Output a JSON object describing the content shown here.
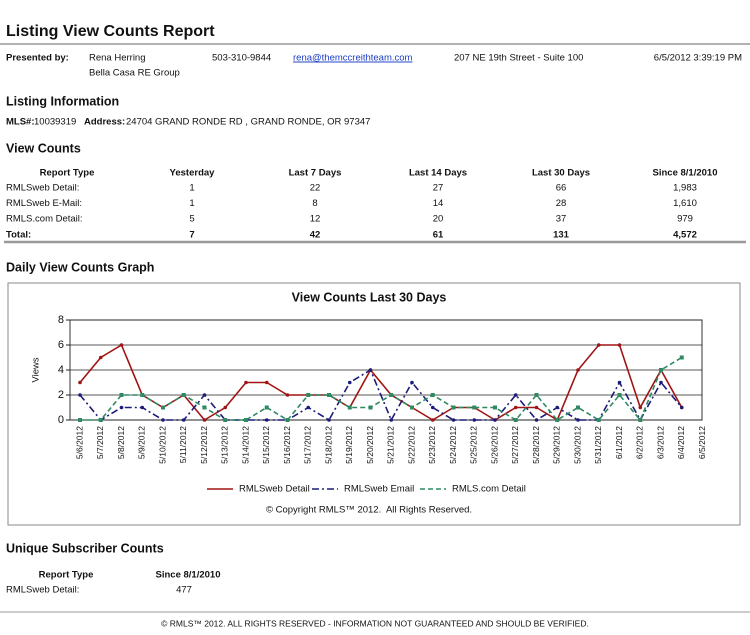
{
  "header": {
    "title": "Listing View Counts Report"
  },
  "presenter": {
    "label": "Presented by:",
    "name": "Rena Herring",
    "company": "Bella Casa RE Group",
    "phone": "503-310-9844",
    "email": "rena@themccreithteam.com",
    "address": "207 NE 19th Street - Suite 100",
    "date": "6/5/2012 3:39:19 PM"
  },
  "listing": {
    "title": "Listing Information",
    "mls_label": "MLS#:",
    "mls": "10039319",
    "address_label": "Address:",
    "address": "24704 GRAND RONDE RD , GRAND RONDE, OR 97347"
  },
  "view_counts": {
    "title": "View Counts",
    "columns": [
      "Report Type",
      "Yesterday",
      "Last 7 Days",
      "Last 14 Days",
      "Last 30 Days",
      "Since 8/1/2010"
    ],
    "rows": [
      [
        "RMLSweb Detail:",
        "1",
        "22",
        "27",
        "66",
        "1,983"
      ],
      [
        "RMLSweb E-Mail:",
        "1",
        "8",
        "14",
        "28",
        "1,610"
      ],
      [
        "RMLS.com Detail:",
        "5",
        "12",
        "20",
        "37",
        "979"
      ]
    ],
    "total": [
      "Total:",
      "7",
      "42",
      "61",
      "131",
      "4,572"
    ]
  },
  "graph_section": {
    "title": "Daily View Counts Graph"
  },
  "chart_data": {
    "type": "line",
    "title": "View Counts Last 30 Days",
    "y_label": "Views",
    "categories": [
      "5/6/2012",
      "5/7/2012",
      "5/8/2012",
      "5/9/2012",
      "5/10/2012",
      "5/11/2012",
      "5/12/2012",
      "5/13/2012",
      "5/14/2012",
      "5/15/2012",
      "5/16/2012",
      "5/17/2012",
      "5/18/2012",
      "5/19/2012",
      "5/20/2012",
      "5/21/2012",
      "5/22/2012",
      "5/23/2012",
      "5/24/2012",
      "5/25/2012",
      "5/26/2012",
      "5/27/2012",
      "5/28/2012",
      "5/29/2012",
      "5/30/2012",
      "5/31/2012",
      "6/1/2012",
      "6/2/2012",
      "6/3/2012",
      "6/4/2012",
      "6/5/2012"
    ],
    "series": [
      {
        "name": "RMLSweb Detail",
        "color": "#a01414",
        "dash": "none",
        "values": [
          3,
          5,
          6,
          2,
          1,
          2,
          0,
          1,
          3,
          3,
          2,
          2,
          2,
          1,
          4,
          2,
          1,
          0,
          1,
          1,
          0,
          1,
          1,
          0,
          4,
          6,
          6,
          1,
          4,
          1,
          null
        ]
      },
      {
        "name": "RMLSweb Email",
        "color": "#1c1c78",
        "dash": "7 3 2 3",
        "values": [
          2,
          0,
          1,
          1,
          0,
          0,
          2,
          0,
          0,
          0,
          0,
          1,
          0,
          3,
          4,
          0,
          3,
          1,
          0,
          0,
          0,
          2,
          0,
          1,
          0,
          0,
          3,
          0,
          3,
          1,
          null
        ]
      },
      {
        "name": "RMLS.com Detail",
        "color": "#2f8a62",
        "dash": "5 3",
        "values": [
          0,
          0,
          2,
          2,
          1,
          2,
          1,
          0,
          0,
          1,
          0,
          2,
          2,
          1,
          1,
          2,
          1,
          2,
          1,
          1,
          1,
          0,
          2,
          0,
          1,
          0,
          2,
          0,
          4,
          5,
          null
        ]
      }
    ],
    "ylim": [
      0,
      8
    ],
    "yticks": [
      0,
      2,
      4,
      6,
      8
    ],
    "grid": true,
    "legend": "bottom",
    "copyright": "© Copyright RMLS™ 2012.  All Rights Reserved."
  },
  "subscriber": {
    "title": "Unique Subscriber Counts",
    "columns": [
      "Report Type",
      "Since 8/1/2010"
    ],
    "rows": [
      [
        "RMLSweb Detail:",
        "477"
      ]
    ]
  },
  "footer": {
    "text": "© RMLS™ 2012. ALL RIGHTS RESERVED - INFORMATION NOT GUARANTEED AND SHOULD BE VERIFIED."
  }
}
